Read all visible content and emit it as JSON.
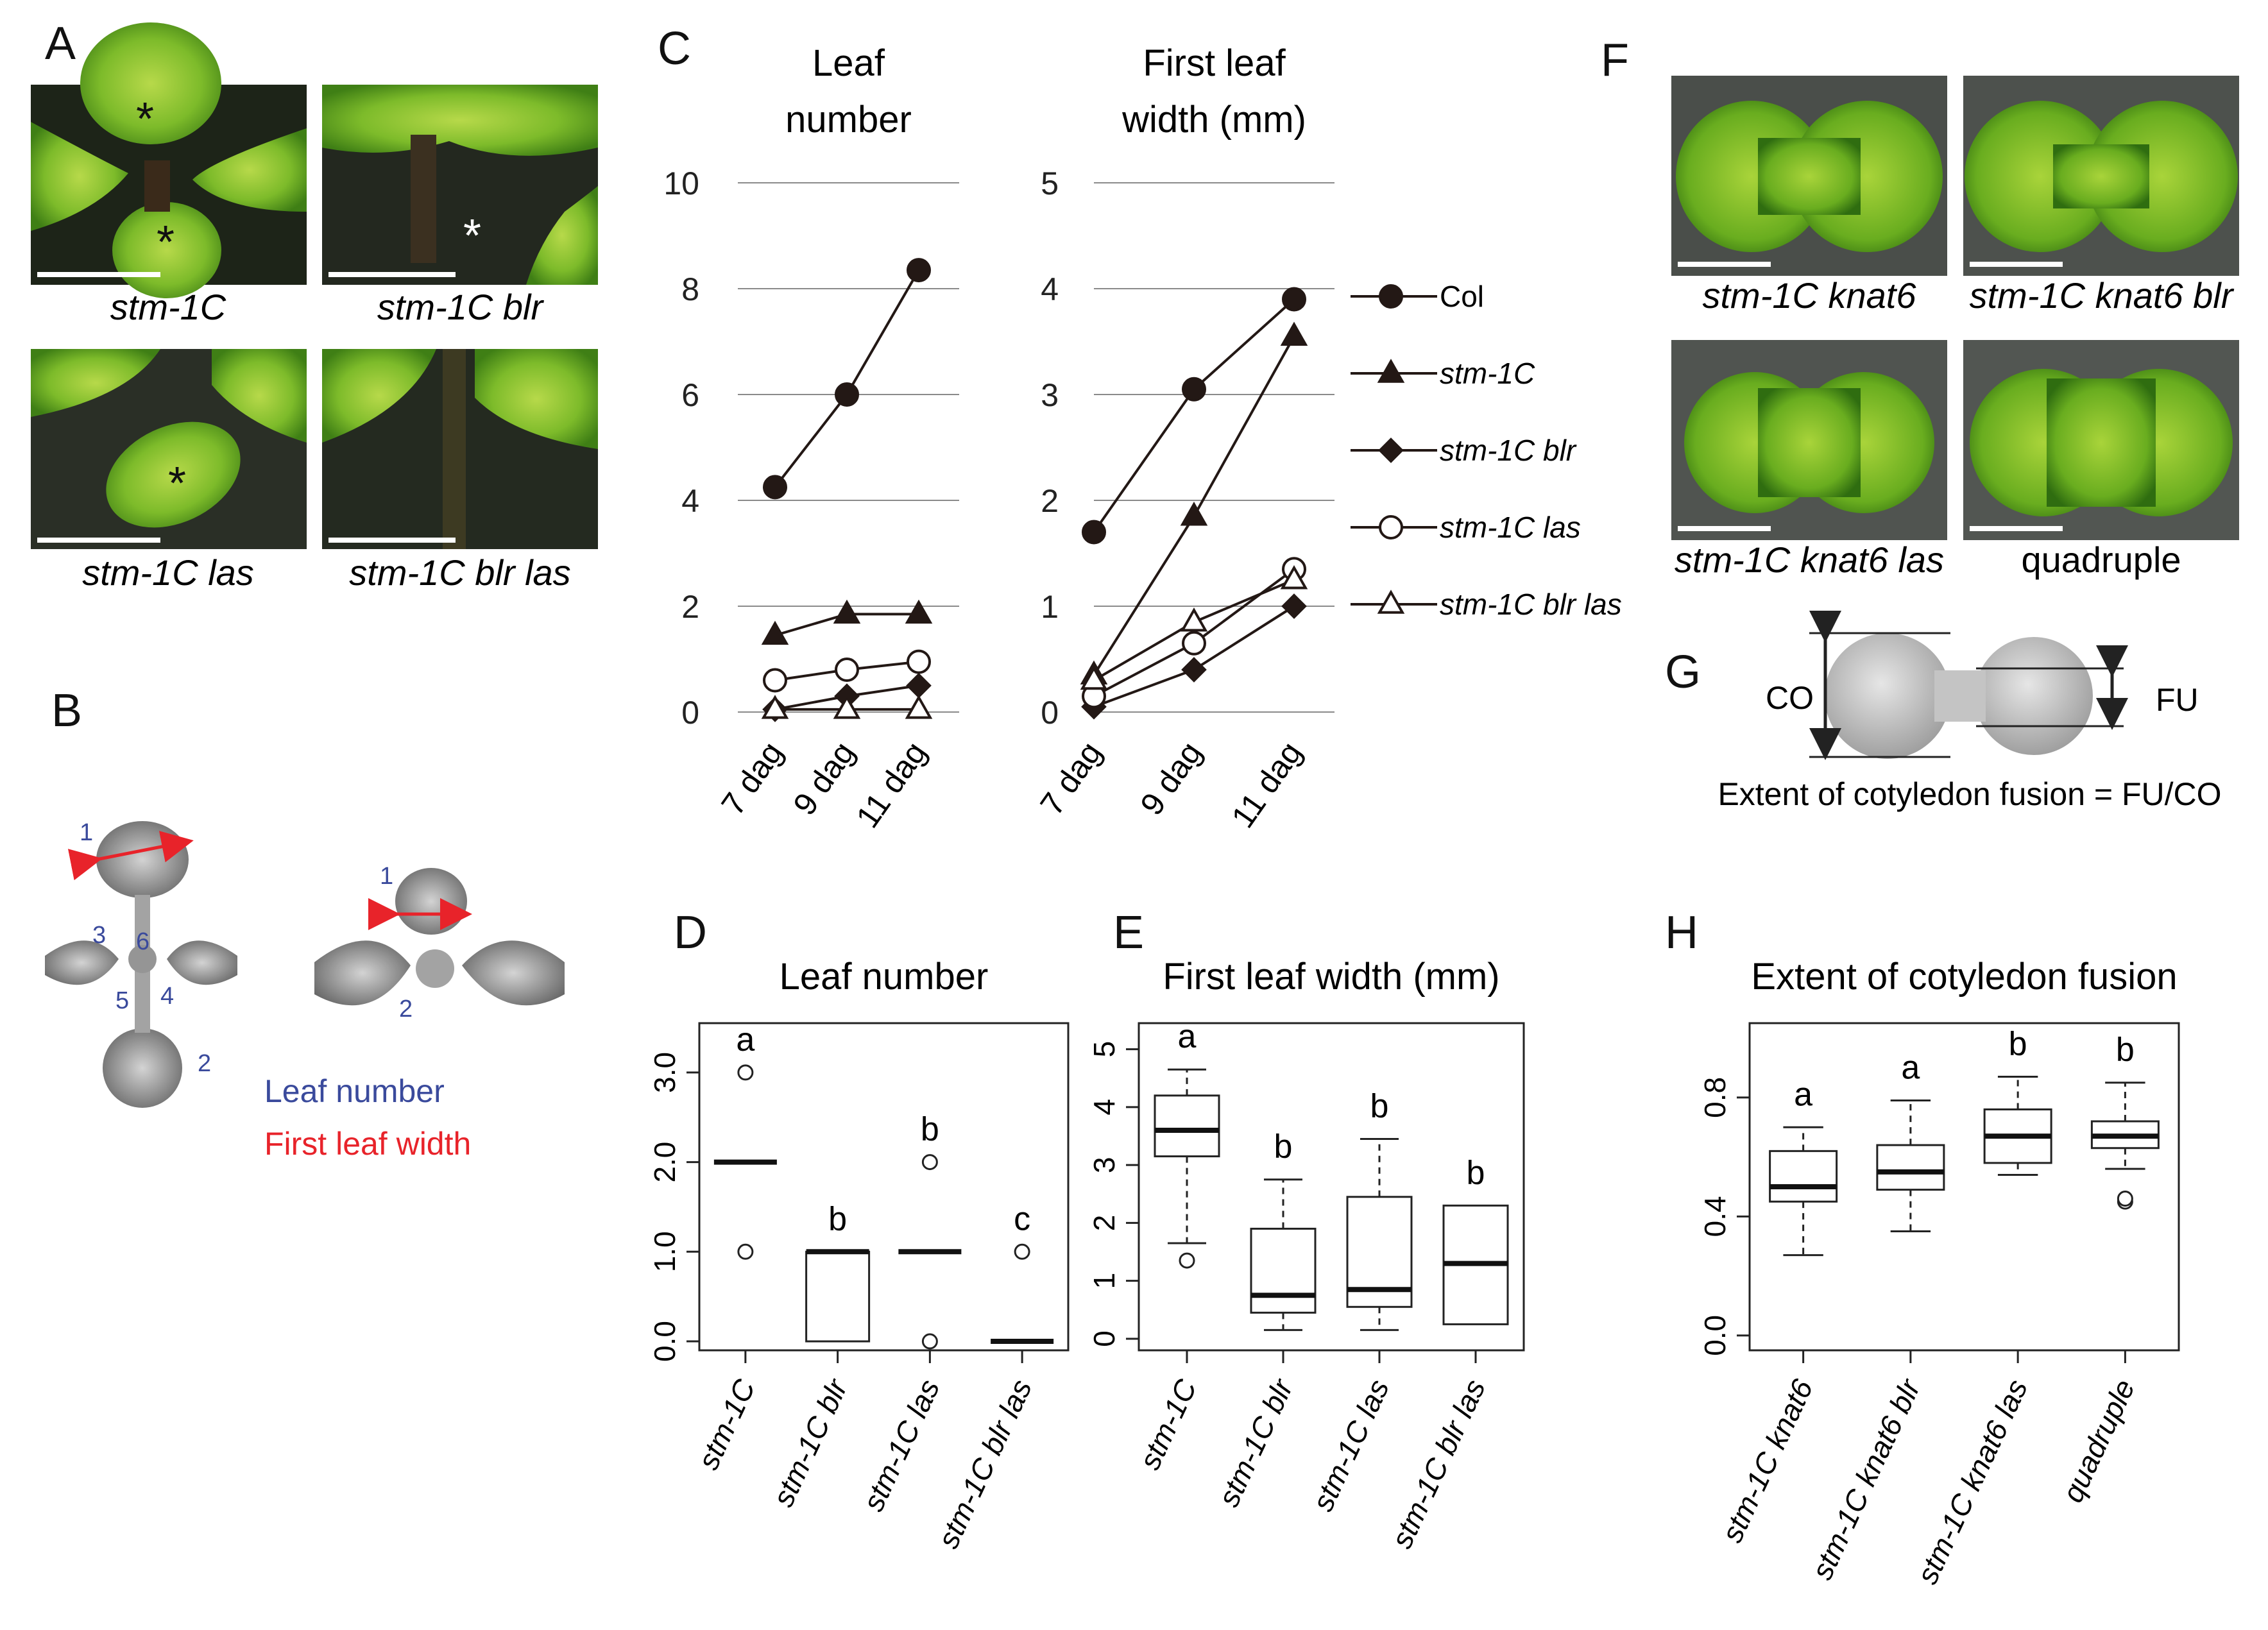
{
  "figure": {
    "panel_labels": [
      "A",
      "B",
      "C",
      "D",
      "E",
      "F",
      "G",
      "H"
    ],
    "panel_a": {
      "photos": [
        {
          "label": "stm-1C",
          "asterisks": [
            "*",
            "*"
          ]
        },
        {
          "label": "stm-1C blr",
          "asterisks": [
            "*"
          ]
        },
        {
          "label": "stm-1C las",
          "asterisks": [
            "*"
          ]
        },
        {
          "label": "stm-1C blr las",
          "asterisks": []
        }
      ]
    },
    "panel_b": {
      "left_numbers": [
        "1",
        "2",
        "3",
        "4",
        "5",
        "6"
      ],
      "right_numbers": [
        "1",
        "2"
      ],
      "legend_leaf_number": "Leaf number",
      "legend_first_leaf_width": "First leaf width",
      "colors": {
        "number": "#3a4a9c",
        "width": "#e8232a"
      }
    },
    "panel_f": {
      "photos": [
        {
          "label": "stm-1C knat6",
          "italic": true
        },
        {
          "label": "stm-1C knat6 blr",
          "italic": true
        },
        {
          "label": "stm-1C knat6 las",
          "italic": true
        },
        {
          "label": "quadruple",
          "italic": false
        }
      ]
    },
    "panel_g": {
      "co_label": "CO",
      "fu_label": "FU",
      "formula": "Extent of cotyledon fusion = FU/CO"
    }
  },
  "chart_data": [
    {
      "id": "C-left",
      "type": "line",
      "title_lines": [
        "Leaf",
        "number"
      ],
      "categories": [
        "7 dag",
        "9 dag",
        "11 dag"
      ],
      "yticks": [
        "0",
        "2",
        "4",
        "6",
        "8",
        "10"
      ],
      "ylim": [
        0,
        10
      ],
      "grid": true,
      "series": [
        {
          "name": "Col",
          "marker": "circle-filled",
          "values": [
            4.25,
            6.0,
            8.35
          ]
        },
        {
          "name": "stm-1C",
          "marker": "triangle-filled",
          "values": [
            1.45,
            1.85,
            1.85
          ]
        },
        {
          "name": "stm-1C blr",
          "marker": "diamond-filled",
          "values": [
            0.05,
            0.3,
            0.5
          ]
        },
        {
          "name": "stm-1C las",
          "marker": "circle-open",
          "values": [
            0.6,
            0.8,
            0.95
          ]
        },
        {
          "name": "stm-1C blr las",
          "marker": "triangle-open",
          "values": [
            0.05,
            0.05,
            0.05
          ]
        }
      ]
    },
    {
      "id": "C-right",
      "type": "line",
      "title_lines": [
        "First leaf",
        "width (mm)"
      ],
      "categories": [
        "7 dag",
        "9 dag",
        "11 dag"
      ],
      "yticks": [
        "0",
        "1",
        "2",
        "3",
        "4",
        "5"
      ],
      "ylim": [
        0,
        5
      ],
      "grid": true,
      "legend": [
        "Col",
        "stm-1C",
        "stm-1C blr",
        "stm-1C las",
        "stm-1C blr las"
      ],
      "series": [
        {
          "name": "Col",
          "marker": "circle-filled",
          "values": [
            1.7,
            3.05,
            3.9
          ]
        },
        {
          "name": "stm-1C",
          "marker": "triangle-filled",
          "values": [
            0.35,
            1.85,
            3.55
          ]
        },
        {
          "name": "stm-1C blr",
          "marker": "diamond-filled",
          "values": [
            0.05,
            0.4,
            1.0
          ]
        },
        {
          "name": "stm-1C las",
          "marker": "circle-open",
          "values": [
            0.15,
            0.65,
            1.35
          ]
        },
        {
          "name": "stm-1C blr las",
          "marker": "triangle-open",
          "values": [
            0.3,
            0.85,
            1.25
          ]
        }
      ]
    },
    {
      "id": "D",
      "type": "box",
      "title": "Leaf number",
      "categories": [
        "stm-1C",
        "stm-1C blr",
        "stm-1C las",
        "stm-1C blr las"
      ],
      "yticks": [
        "0.0",
        "1.0",
        "2.0",
        "3.0"
      ],
      "ylim": [
        -0.1,
        3.55
      ],
      "letters": [
        "a",
        "b",
        "b",
        "c"
      ],
      "boxes": [
        {
          "q1": 2.0,
          "median": 2.0,
          "q3": 2.0,
          "whisker_low": 2.0,
          "whisker_high": 2.0,
          "outliers": [
            1.0,
            3.0
          ]
        },
        {
          "q1": 0.0,
          "median": 1.0,
          "q3": 1.0,
          "whisker_low": 0.0,
          "whisker_high": 1.0,
          "outliers": []
        },
        {
          "q1": 1.0,
          "median": 1.0,
          "q3": 1.0,
          "whisker_low": 1.0,
          "whisker_high": 1.0,
          "outliers": [
            0.0,
            2.0
          ]
        },
        {
          "q1": 0.0,
          "median": 0.0,
          "q3": 0.0,
          "whisker_low": 0.0,
          "whisker_high": 0.0,
          "outliers": [
            1.0
          ]
        }
      ]
    },
    {
      "id": "E",
      "type": "box",
      "title": "First leaf width (mm)",
      "categories": [
        "stm-1C",
        "stm-1C blr",
        "stm-1C las",
        "stm-1C blr las"
      ],
      "yticks": [
        "0",
        "1",
        "2",
        "3",
        "4",
        "5"
      ],
      "ylim": [
        -0.2,
        5.45
      ],
      "letters": [
        "a",
        "b",
        "b",
        "b"
      ],
      "boxes": [
        {
          "q1": 3.15,
          "median": 3.6,
          "q3": 4.2,
          "whisker_low": 1.65,
          "whisker_high": 4.65,
          "outliers": [
            1.35
          ]
        },
        {
          "q1": 0.45,
          "median": 0.75,
          "q3": 1.9,
          "whisker_low": 0.15,
          "whisker_high": 2.75,
          "outliers": []
        },
        {
          "q1": 0.55,
          "median": 0.85,
          "q3": 2.45,
          "whisker_low": 0.15,
          "whisker_high": 3.45,
          "outliers": []
        },
        {
          "q1": 0.25,
          "median": 1.3,
          "q3": 2.3,
          "whisker_low": 0.25,
          "whisker_high": 2.3,
          "outliers": []
        }
      ]
    },
    {
      "id": "H",
      "type": "box",
      "title": "Extent of cotyledon fusion",
      "categories": [
        "stm-1C knat6",
        "stm-1C knat6 blr",
        "stm-1C knat6 las",
        "quadruple"
      ],
      "yticks": [
        "0.0",
        "0.4",
        "0.8"
      ],
      "ylim": [
        -0.05,
        1.05
      ],
      "letters": [
        "a",
        "a",
        "b",
        "b"
      ],
      "boxes": [
        {
          "q1": 0.45,
          "median": 0.5,
          "q3": 0.62,
          "whisker_low": 0.27,
          "whisker_high": 0.7,
          "outliers": []
        },
        {
          "q1": 0.49,
          "median": 0.55,
          "q3": 0.64,
          "whisker_low": 0.35,
          "whisker_high": 0.79,
          "outliers": []
        },
        {
          "q1": 0.58,
          "median": 0.67,
          "q3": 0.76,
          "whisker_low": 0.54,
          "whisker_high": 0.87,
          "outliers": []
        },
        {
          "q1": 0.63,
          "median": 0.67,
          "q3": 0.72,
          "whisker_low": 0.56,
          "whisker_high": 0.85,
          "outliers": [
            0.45,
            0.46
          ]
        }
      ]
    }
  ]
}
